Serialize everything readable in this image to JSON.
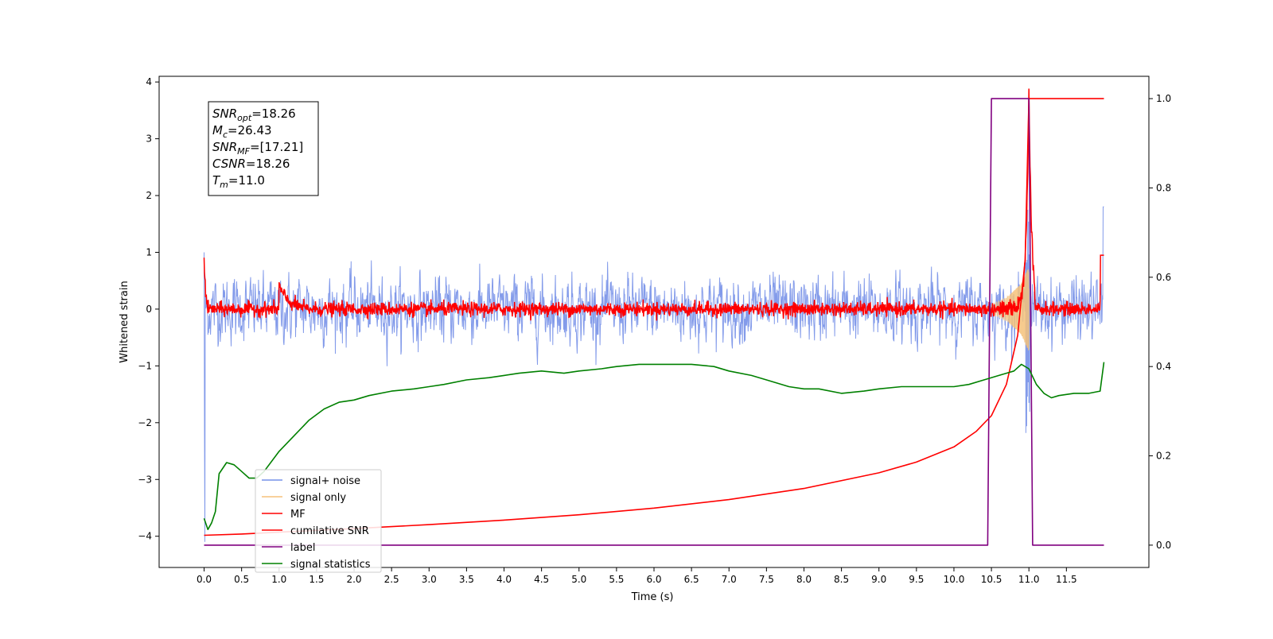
{
  "chart_data": {
    "type": "line",
    "xlabel": "Time (s)",
    "ylabel": "Whitened strain",
    "xlim": [
      -0.6,
      12.6
    ],
    "ylim": [
      -4.55,
      4.1
    ],
    "y2lim": [
      -0.05,
      1.05
    ],
    "xticks": [
      "0.0",
      "0.5",
      "1.0",
      "1.5",
      "2.0",
      "2.5",
      "3.0",
      "3.5",
      "4.0",
      "4.5",
      "5.0",
      "5.5",
      "6.0",
      "6.5",
      "7.0",
      "7.5",
      "8.0",
      "8.5",
      "9.0",
      "9.5",
      "10.0",
      "10.5",
      "11.0",
      "11.5"
    ],
    "yticks": [
      "4",
      "3",
      "2",
      "1",
      "0",
      "−1",
      "−2",
      "−3",
      "−4"
    ],
    "y2ticks": [
      "1.0",
      "0.8",
      "0.6",
      "0.4",
      "0.2",
      "0.0"
    ],
    "grid": false,
    "legend_position": "lower-left",
    "annotation": {
      "lines": [
        {
          "name": "SNR",
          "sub": "opt",
          "value": "=18.26"
        },
        {
          "name": "M",
          "sub": "c",
          "value": "=26.43"
        },
        {
          "name": "SNR",
          "sub": "MF",
          "value": "=[17.21]"
        },
        {
          "name": "CSNR",
          "sub": "",
          "value": "=18.26"
        },
        {
          "name": "T",
          "sub": "m",
          "value": "=11.0"
        }
      ]
    },
    "series": [
      {
        "name": "signal+ noise",
        "color": "#7590e8",
        "axis": "left",
        "amplitude": 0.45
      },
      {
        "name": "signal only",
        "color": "#f5c27a",
        "axis": "left",
        "peak_amplitude": 0.75,
        "envelope": [
          [
            10.4,
            0.02
          ],
          [
            10.7,
            0.2
          ],
          [
            10.9,
            0.45
          ],
          [
            11.0,
            0.75
          ]
        ]
      },
      {
        "name": "MF",
        "color": "#ff0000",
        "axis": "left",
        "amplitude": 0.06,
        "bumps": [
          [
            1.0,
            0.45
          ],
          [
            11.0,
            3.85
          ]
        ]
      },
      {
        "name": "cumilative SNR",
        "color": "#ff0000",
        "axis": "right",
        "x": [
          0.0,
          0.5,
          1.0,
          2.0,
          3.0,
          4.0,
          5.0,
          6.0,
          7.0,
          8.0,
          9.0,
          9.5,
          10.0,
          10.3,
          10.5,
          10.7,
          10.85,
          10.95,
          11.0,
          12.0
        ],
        "y": [
          0.022,
          0.025,
          0.029,
          0.037,
          0.046,
          0.056,
          0.068,
          0.083,
          0.102,
          0.127,
          0.162,
          0.186,
          0.22,
          0.255,
          0.29,
          0.36,
          0.47,
          0.64,
          1.0,
          1.0
        ]
      },
      {
        "name": "label",
        "color": "#800080",
        "axis": "right",
        "x": [
          0.0,
          10.45,
          10.5,
          11.0,
          11.05,
          12.0
        ],
        "y": [
          0.0,
          0.0,
          1.0,
          1.0,
          0.0,
          0.0
        ]
      },
      {
        "name": "signal statistics",
        "color": "#008000",
        "axis": "right",
        "x": [
          0.0,
          0.05,
          0.1,
          0.15,
          0.2,
          0.3,
          0.4,
          0.5,
          0.6,
          0.7,
          0.8,
          1.0,
          1.2,
          1.4,
          1.6,
          1.8,
          2.0,
          2.2,
          2.5,
          2.8,
          3.0,
          3.2,
          3.5,
          3.8,
          4.0,
          4.2,
          4.5,
          4.8,
          5.0,
          5.3,
          5.5,
          5.8,
          6.0,
          6.3,
          6.5,
          6.8,
          7.0,
          7.3,
          7.5,
          7.8,
          8.0,
          8.2,
          8.5,
          8.8,
          9.0,
          9.3,
          9.5,
          9.8,
          10.0,
          10.2,
          10.4,
          10.6,
          10.8,
          10.9,
          11.0,
          11.1,
          11.2,
          11.3,
          11.4,
          11.6,
          11.8,
          11.95,
          12.0
        ],
        "y": [
          0.06,
          0.035,
          0.05,
          0.075,
          0.16,
          0.185,
          0.18,
          0.165,
          0.15,
          0.15,
          0.165,
          0.21,
          0.245,
          0.28,
          0.305,
          0.32,
          0.325,
          0.335,
          0.345,
          0.35,
          0.355,
          0.36,
          0.37,
          0.375,
          0.38,
          0.385,
          0.39,
          0.385,
          0.39,
          0.395,
          0.4,
          0.405,
          0.405,
          0.405,
          0.405,
          0.4,
          0.39,
          0.38,
          0.37,
          0.355,
          0.35,
          0.35,
          0.34,
          0.345,
          0.35,
          0.355,
          0.355,
          0.355,
          0.355,
          0.36,
          0.37,
          0.38,
          0.39,
          0.405,
          0.395,
          0.36,
          0.34,
          0.33,
          0.335,
          0.34,
          0.34,
          0.345,
          0.41
        ]
      }
    ]
  }
}
